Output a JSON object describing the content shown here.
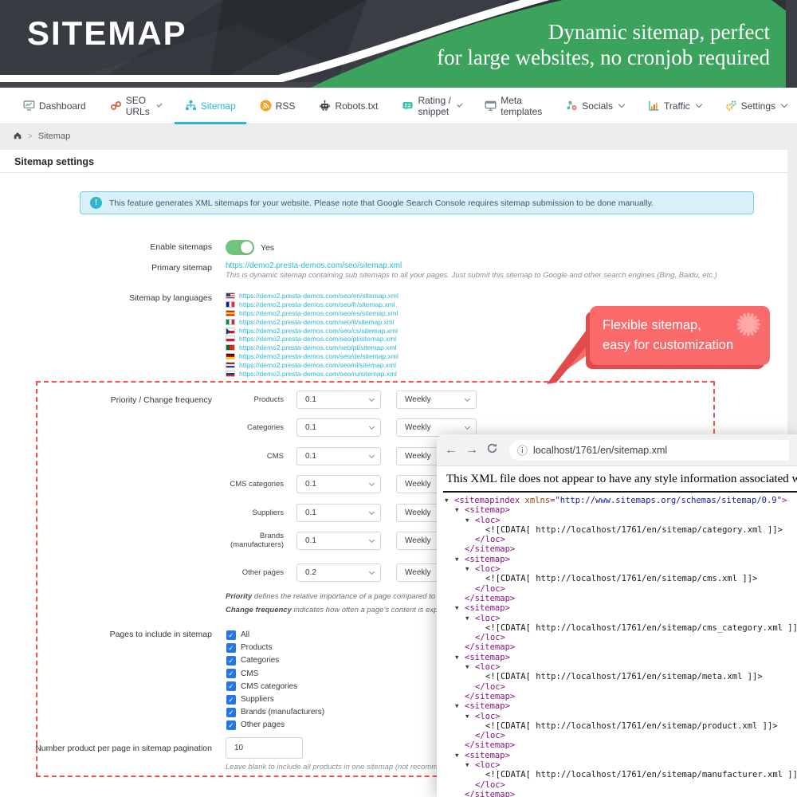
{
  "theme": {
    "accent": "#25b9d7",
    "green": "#3ba35c",
    "red": "#fb6a6a",
    "dashed_border": "#f4524e"
  },
  "banner": {
    "title": "SITEMAP",
    "tagline_line1": "Dynamic sitemap, perfect",
    "tagline_line2": "for large websites, no cronjob required"
  },
  "nav": {
    "items": [
      {
        "label": "Dashboard",
        "icon": "dashboard-icon",
        "caret": false,
        "active": false
      },
      {
        "label": "SEO URLs",
        "icon": "seo-urls-icon",
        "caret": true,
        "active": false
      },
      {
        "label": "Sitemap",
        "icon": "sitemap-icon",
        "caret": false,
        "active": true
      },
      {
        "label": "RSS",
        "icon": "rss-icon",
        "caret": false,
        "active": false
      },
      {
        "label": "Robots.txt",
        "icon": "robots-icon",
        "caret": false,
        "active": false
      },
      {
        "label": "Rating / snippet",
        "icon": "rating-icon",
        "caret": true,
        "active": false
      },
      {
        "label": "Meta templates",
        "icon": "meta-templates-icon",
        "caret": false,
        "active": false
      },
      {
        "label": "Socials",
        "icon": "socials-icon",
        "caret": true,
        "active": false
      },
      {
        "label": "Traffic",
        "icon": "traffic-icon",
        "caret": true,
        "active": false
      },
      {
        "label": "Settings",
        "icon": "settings-icon",
        "caret": true,
        "active": false
      }
    ]
  },
  "breadcrumb": {
    "page": "Sitemap"
  },
  "panel": {
    "title": "Sitemap settings"
  },
  "alert": {
    "text": "This feature generates XML sitemaps for your website. Please note that Google Search Console requires sitemap submission to be done manually."
  },
  "form": {
    "enable_label": "Enable sitemaps",
    "enable_value": "Yes",
    "primary_label": "Primary sitemap",
    "primary_url": "https://demo2.presta-demos.com/seo/sitemap.xml",
    "primary_note": "This is dynamic sitemap containing sub sitemaps to all your pages. Just submit this sitemap to Google and other search engines (Bing, Baidu, etc.)",
    "languages_label": "Sitemap by languages",
    "languages": [
      {
        "code": "en",
        "url": "https://demo2.presta-demos.com/seo/en/sitemap.xml"
      },
      {
        "code": "fr",
        "url": "https://demo2.presta-demos.com/seo/fr/sitemap.xml"
      },
      {
        "code": "es",
        "url": "https://demo2.presta-demos.com/seo/es/sitemap.xml"
      },
      {
        "code": "it",
        "url": "https://demo2.presta-demos.com/seo/it/sitemap.xml"
      },
      {
        "code": "cs",
        "url": "https://demo2.presta-demos.com/seo/cs/sitemap.xml"
      },
      {
        "code": "pl",
        "url": "https://demo2.presta-demos.com/seo/pl/sitemap.xml"
      },
      {
        "code": "pt",
        "url": "https://demo2.presta-demos.com/seo/pt/sitemap.xml"
      },
      {
        "code": "de",
        "url": "https://demo2.presta-demos.com/seo/de/sitemap.xml"
      },
      {
        "code": "nl",
        "url": "https://demo2.presta-demos.com/seo/nl/sitemap.xml"
      },
      {
        "code": "ru",
        "url": "https://demo2.presta-demos.com/seo/ru/sitemap.xml"
      }
    ],
    "priority_label": "Priority / Change frequency",
    "priority_rows": [
      {
        "label": "Products",
        "priority": "0.1",
        "frequency": "Weekly"
      },
      {
        "label": "Categories",
        "priority": "0.1",
        "frequency": "Weekly"
      },
      {
        "label": "CMS",
        "priority": "0.1",
        "frequency": "Weekly"
      },
      {
        "label": "CMS categories",
        "priority": "0.1",
        "frequency": "Weekly"
      },
      {
        "label": "Suppliers",
        "priority": "0.1",
        "frequency": "Weekly"
      },
      {
        "label": "Brands (manufacturers)",
        "priority": "0.1",
        "frequency": "Weekly"
      },
      {
        "label": "Other pages",
        "priority": "0.2",
        "frequency": "Weekly"
      }
    ],
    "notes": [
      {
        "strong": "Priority",
        "text": " defines the relative importance of a page compared to other pages on your website"
      },
      {
        "strong": "Change frequency",
        "text": " indicates how often a page's content is expected to change, helping"
      }
    ],
    "pages_label": "Pages to include in sitemap",
    "pages": [
      "All",
      "Products",
      "Categories",
      "CMS",
      "CMS categories",
      "Suppliers",
      "Brands (manufacturers)",
      "Other pages"
    ],
    "pagination_label": "Number product per page in sitemap pagination",
    "pagination_value": "10",
    "pagination_note": "Leave blank to include all products in one sitemap (not recommended for large cat"
  },
  "callout": {
    "line1": "Flexible sitemap,",
    "line2": "easy for customization"
  },
  "browser": {
    "url": "localhost/1761/en/sitemap.xml",
    "style_note": "This XML file does not appear to have any style information associated with it. The",
    "xml_lines": [
      {
        "indent": 0,
        "arrow": true,
        "segs": [
          [
            "tag",
            "<sitemapindex"
          ],
          [
            "attr",
            " xmlns"
          ],
          [
            "tag",
            "="
          ],
          [
            "val",
            "\"http://www.sitemaps.org/schemas/sitemap/0.9\""
          ],
          [
            "tag",
            ">"
          ]
        ]
      },
      {
        "indent": 1,
        "arrow": true,
        "segs": [
          [
            "tag",
            "<sitemap>"
          ]
        ]
      },
      {
        "indent": 2,
        "arrow": true,
        "segs": [
          [
            "tag",
            "<loc>"
          ]
        ]
      },
      {
        "indent": 3,
        "arrow": false,
        "segs": [
          [
            "text",
            "<![CDATA[ http://localhost/1761/en/sitemap/category.xml ]]>"
          ]
        ]
      },
      {
        "indent": 2,
        "arrow": false,
        "segs": [
          [
            "tag",
            "</loc>"
          ]
        ]
      },
      {
        "indent": 1,
        "arrow": false,
        "segs": [
          [
            "tag",
            "</sitemap>"
          ]
        ]
      },
      {
        "indent": 1,
        "arrow": true,
        "segs": [
          [
            "tag",
            "<sitemap>"
          ]
        ]
      },
      {
        "indent": 2,
        "arrow": true,
        "segs": [
          [
            "tag",
            "<loc>"
          ]
        ]
      },
      {
        "indent": 3,
        "arrow": false,
        "segs": [
          [
            "text",
            "<![CDATA[ http://localhost/1761/en/sitemap/cms.xml ]]>"
          ]
        ]
      },
      {
        "indent": 2,
        "arrow": false,
        "segs": [
          [
            "tag",
            "</loc>"
          ]
        ]
      },
      {
        "indent": 1,
        "arrow": false,
        "segs": [
          [
            "tag",
            "</sitemap>"
          ]
        ]
      },
      {
        "indent": 1,
        "arrow": true,
        "segs": [
          [
            "tag",
            "<sitemap>"
          ]
        ]
      },
      {
        "indent": 2,
        "arrow": true,
        "segs": [
          [
            "tag",
            "<loc>"
          ]
        ]
      },
      {
        "indent": 3,
        "arrow": false,
        "segs": [
          [
            "text",
            "<![CDATA[ http://localhost/1761/en/sitemap/cms_category.xml ]]>"
          ]
        ]
      },
      {
        "indent": 2,
        "arrow": false,
        "segs": [
          [
            "tag",
            "</loc>"
          ]
        ]
      },
      {
        "indent": 1,
        "arrow": false,
        "segs": [
          [
            "tag",
            "</sitemap>"
          ]
        ]
      },
      {
        "indent": 1,
        "arrow": true,
        "segs": [
          [
            "tag",
            "<sitemap>"
          ]
        ]
      },
      {
        "indent": 2,
        "arrow": true,
        "segs": [
          [
            "tag",
            "<loc>"
          ]
        ]
      },
      {
        "indent": 3,
        "arrow": false,
        "segs": [
          [
            "text",
            "<![CDATA[ http://localhost/1761/en/sitemap/meta.xml ]]>"
          ]
        ]
      },
      {
        "indent": 2,
        "arrow": false,
        "segs": [
          [
            "tag",
            "</loc>"
          ]
        ]
      },
      {
        "indent": 1,
        "arrow": false,
        "segs": [
          [
            "tag",
            "</sitemap>"
          ]
        ]
      },
      {
        "indent": 1,
        "arrow": true,
        "segs": [
          [
            "tag",
            "<sitemap>"
          ]
        ]
      },
      {
        "indent": 2,
        "arrow": true,
        "segs": [
          [
            "tag",
            "<loc>"
          ]
        ]
      },
      {
        "indent": 3,
        "arrow": false,
        "segs": [
          [
            "text",
            "<![CDATA[ http://localhost/1761/en/sitemap/product.xml ]]>"
          ]
        ]
      },
      {
        "indent": 2,
        "arrow": false,
        "segs": [
          [
            "tag",
            "</loc>"
          ]
        ]
      },
      {
        "indent": 1,
        "arrow": false,
        "segs": [
          [
            "tag",
            "</sitemap>"
          ]
        ]
      },
      {
        "indent": 1,
        "arrow": true,
        "segs": [
          [
            "tag",
            "<sitemap>"
          ]
        ]
      },
      {
        "indent": 2,
        "arrow": true,
        "segs": [
          [
            "tag",
            "<loc>"
          ]
        ]
      },
      {
        "indent": 3,
        "arrow": false,
        "segs": [
          [
            "text",
            "<![CDATA[ http://localhost/1761/en/sitemap/manufacturer.xml ]]>"
          ]
        ]
      },
      {
        "indent": 2,
        "arrow": false,
        "segs": [
          [
            "tag",
            "</loc>"
          ]
        ]
      },
      {
        "indent": 1,
        "arrow": false,
        "segs": [
          [
            "tag",
            "</sitemap>"
          ]
        ]
      },
      {
        "indent": 1,
        "arrow": true,
        "segs": [
          [
            "tag",
            "<sitemap>"
          ]
        ]
      }
    ]
  }
}
